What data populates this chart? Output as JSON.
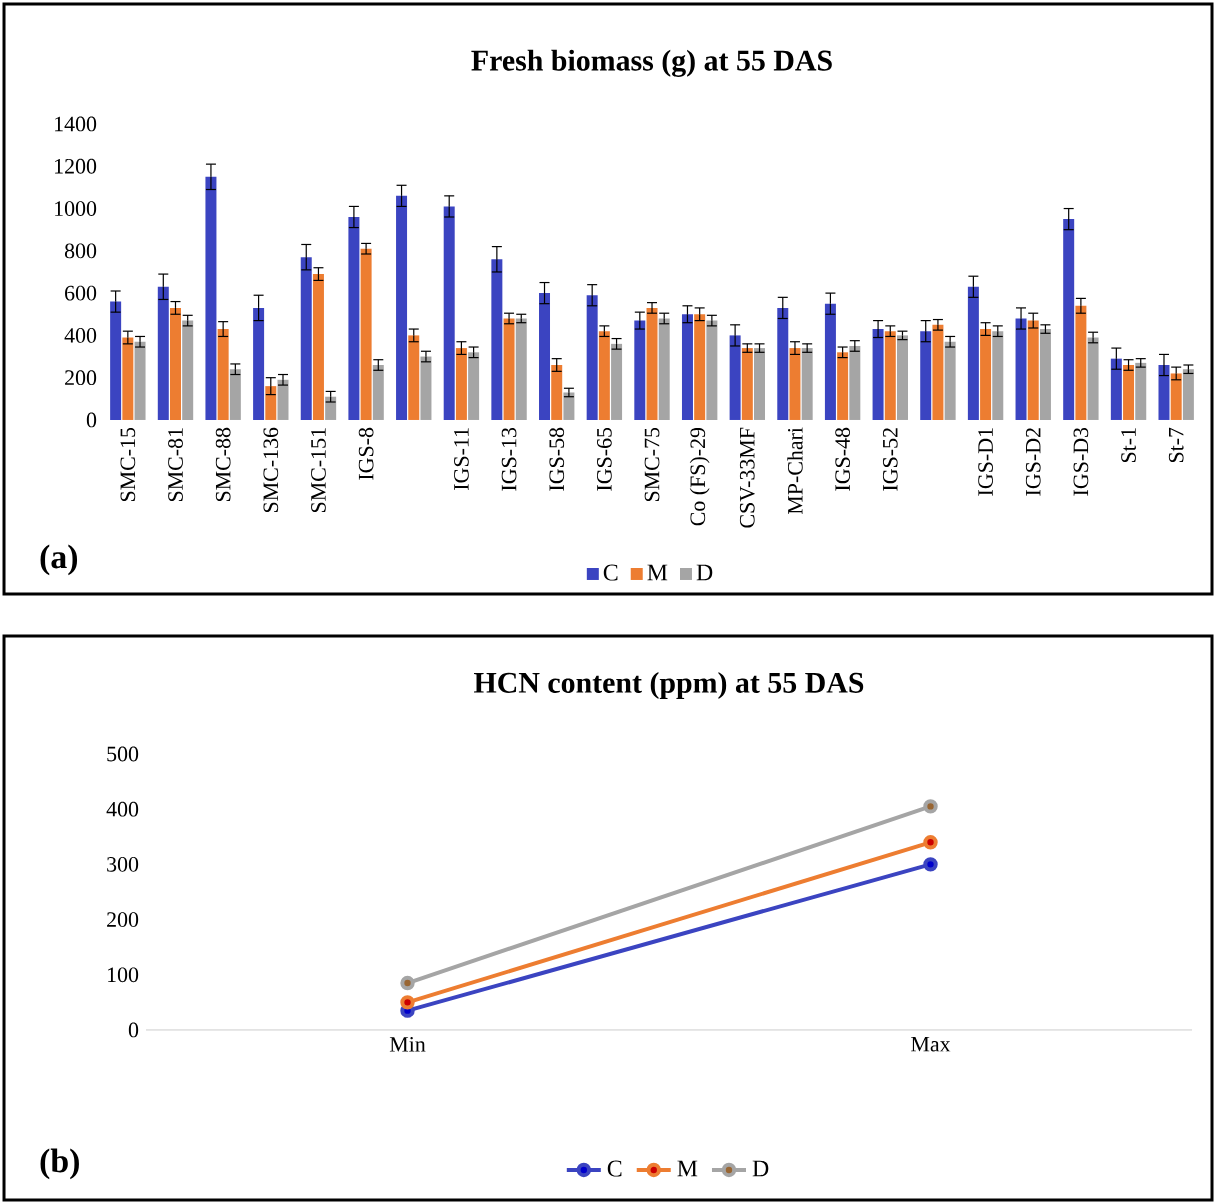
{
  "chart_data": [
    {
      "type": "bar",
      "title": "Fresh biomass (g) at 55 DAS",
      "categories": [
        "SMC-15",
        "SMC-81",
        "SMC-88",
        "SMC-136",
        "SMC-151",
        "IGS-8",
        null,
        "IGS-11",
        "IGS-13",
        "IGS-58",
        "IGS-65",
        "SMC-75",
        "Co (FS)-29",
        "CSV-33MF",
        "MP-Chari",
        "IGS-48",
        "IGS-52",
        null,
        "IGS-D1",
        "IGS-D2",
        "IGS-D3",
        "St-1",
        "St-7"
      ],
      "series": [
        {
          "name": "C",
          "color": "#3b44c1",
          "values": [
            560,
            630,
            1150,
            530,
            770,
            960,
            1060,
            1010,
            760,
            600,
            590,
            470,
            500,
            400,
            530,
            550,
            430,
            420,
            630,
            480,
            950,
            290,
            260
          ],
          "errors": [
            50,
            60,
            60,
            60,
            60,
            50,
            50,
            50,
            60,
            50,
            50,
            40,
            40,
            50,
            50,
            50,
            40,
            50,
            50,
            50,
            50,
            50,
            50
          ]
        },
        {
          "name": "M",
          "color": "#ed7d31",
          "values": [
            390,
            530,
            430,
            160,
            690,
            810,
            400,
            340,
            480,
            260,
            420,
            530,
            500,
            340,
            340,
            320,
            420,
            450,
            430,
            470,
            540,
            260,
            220
          ],
          "errors": [
            30,
            30,
            35,
            40,
            30,
            25,
            30,
            30,
            25,
            30,
            25,
            25,
            30,
            20,
            30,
            25,
            25,
            25,
            30,
            35,
            35,
            25,
            30
          ]
        },
        {
          "name": "D",
          "color": "#a5a5a5",
          "values": [
            370,
            470,
            240,
            190,
            110,
            260,
            300,
            320,
            480,
            130,
            360,
            480,
            470,
            340,
            340,
            350,
            400,
            370,
            420,
            430,
            390,
            270,
            240
          ],
          "errors": [
            25,
            25,
            25,
            25,
            25,
            25,
            25,
            25,
            20,
            20,
            25,
            25,
            25,
            20,
            20,
            25,
            20,
            25,
            25,
            20,
            25,
            20,
            20
          ]
        }
      ],
      "ylim": [
        0,
        1400
      ],
      "yticks": [
        0,
        200,
        400,
        600,
        800,
        1000,
        1200,
        1400
      ],
      "legend": "bottom",
      "annotations": [
        "(a)"
      ]
    },
    {
      "type": "line",
      "title": "HCN content (ppm) at 55 DAS",
      "categories": [
        "Min",
        "Max"
      ],
      "series": [
        {
          "name": "C",
          "color": "#3b44c1",
          "values": [
            35,
            300
          ]
        },
        {
          "name": "M",
          "color": "#ed7d31",
          "values": [
            50,
            340
          ]
        },
        {
          "name": "D",
          "color": "#a5a5a5",
          "values": [
            85,
            405
          ]
        }
      ],
      "ylim": [
        0,
        500
      ],
      "yticks": [
        0,
        100,
        200,
        300,
        400,
        500
      ],
      "legend": "bottom",
      "marker": "circle",
      "line_style": "solid",
      "annotations": [
        "(b)"
      ]
    }
  ]
}
